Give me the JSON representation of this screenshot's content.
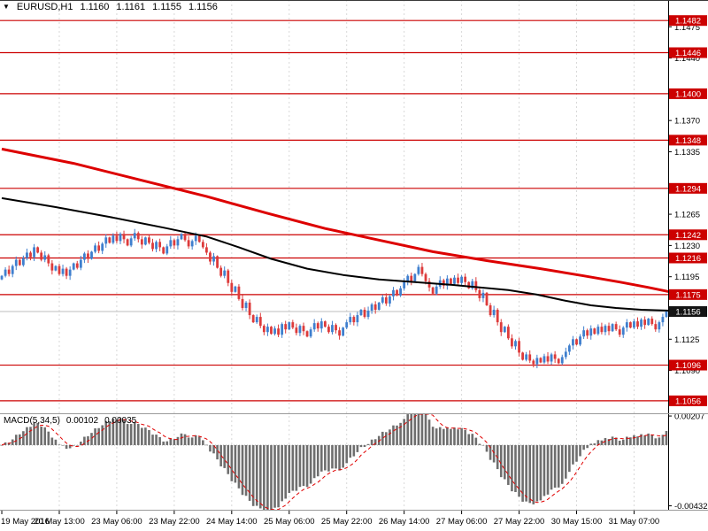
{
  "header": {
    "symbol": "EURUSD,H1",
    "open": "1.1160",
    "high": "1.1161",
    "low": "1.1155",
    "close": "1.1156"
  },
  "indicator": {
    "label": "MACD(5,34,5)",
    "value1": "0.00102",
    "value2": "0.00035"
  },
  "colors": {
    "up": "#3f7fce",
    "down": "#dd3b3b",
    "level": "#cc0000",
    "ma_slow": "#dd0000",
    "ma_fast": "#000000",
    "macd_hist": "#6e6e6e",
    "macd_signal": "#e00000",
    "grid": "#d8d8d8",
    "current_badge": "#141414",
    "separator": "#9a9a9a"
  },
  "chart_data": [
    {
      "type": "candlestick",
      "symbol": "EURUSD",
      "timeframe": "H1",
      "ohlc_display": {
        "open": "1.1160",
        "high": "1.1161",
        "low": "1.1155",
        "close": "1.1156"
      },
      "ylim": [
        1.1043,
        1.1505
      ],
      "open_first": 1.1192,
      "closes": [
        1.1196,
        1.1203,
        1.1198,
        1.1207,
        1.1214,
        1.1208,
        1.1216,
        1.1222,
        1.1217,
        1.1228,
        1.1222,
        1.1214,
        1.1219,
        1.121,
        1.1202,
        1.1207,
        1.1198,
        1.1204,
        1.1196,
        1.1203,
        1.121,
        1.1205,
        1.1214,
        1.1221,
        1.1215,
        1.1223,
        1.123,
        1.1224,
        1.1232,
        1.1239,
        1.1233,
        1.1241,
        1.1235,
        1.1243,
        1.1237,
        1.123,
        1.1238,
        1.1244,
        1.1237,
        1.1231,
        1.1239,
        1.1233,
        1.1226,
        1.1234,
        1.1228,
        1.1221,
        1.1229,
        1.1236,
        1.123,
        1.1237,
        1.1243,
        1.1236,
        1.1229,
        1.1235,
        1.1241,
        1.1234,
        1.1228,
        1.1222,
        1.1212,
        1.1218,
        1.1205,
        1.1196,
        1.1202,
        1.1188,
        1.1178,
        1.1184,
        1.117,
        1.116,
        1.1166,
        1.1152,
        1.1144,
        1.115,
        1.114,
        1.1133,
        1.1139,
        1.1131,
        1.1137,
        1.113,
        1.1142,
        1.1136,
        1.1144,
        1.1138,
        1.1132,
        1.114,
        1.1134,
        1.1128,
        1.1136,
        1.1143,
        1.1137,
        1.1145,
        1.1139,
        1.1133,
        1.1141,
        1.1135,
        1.1129,
        1.1138,
        1.1144,
        1.115,
        1.1144,
        1.1152,
        1.1158,
        1.115,
        1.1157,
        1.1164,
        1.1158,
        1.1166,
        1.1172,
        1.1165,
        1.1173,
        1.118,
        1.1174,
        1.1182,
        1.1189,
        1.1196,
        1.119,
        1.1198,
        1.1206,
        1.1198,
        1.119,
        1.1183,
        1.1176,
        1.1184,
        1.1191,
        1.1185,
        1.1193,
        1.1187,
        1.1194,
        1.1188,
        1.1195,
        1.1189,
        1.1182,
        1.119,
        1.118,
        1.1171,
        1.1177,
        1.1163,
        1.1152,
        1.1158,
        1.1144,
        1.1133,
        1.1139,
        1.1126,
        1.1117,
        1.1123,
        1.111,
        1.1102,
        1.1108,
        1.1101,
        1.1097,
        1.1104,
        1.1099,
        1.1106,
        1.11,
        1.1108,
        1.1103,
        1.1098,
        1.1105,
        1.1111,
        1.1118,
        1.1125,
        1.1119,
        1.1128,
        1.1135,
        1.1129,
        1.1137,
        1.1131,
        1.1139,
        1.1133,
        1.114,
        1.1134,
        1.1142,
        1.1136,
        1.113,
        1.1138,
        1.1144,
        1.1138,
        1.1145,
        1.1139,
        1.1147,
        1.1141,
        1.1148,
        1.1142,
        1.1136,
        1.1144,
        1.115,
        1.1156
      ],
      "horizontal_levels": [
        1.1482,
        1.1446,
        1.14,
        1.1348,
        1.1294,
        1.1242,
        1.1216,
        1.1175,
        1.1096,
        1.1056
      ],
      "axis_ticks": [
        1.1475,
        1.144,
        1.137,
        1.1335,
        1.1265,
        1.123,
        1.1195,
        1.1125,
        1.109
      ],
      "current_price": 1.1156,
      "current_price_label": "1.1156",
      "level_labels": [
        "1.1482",
        "1.1446",
        "1.1400",
        "1.1348",
        "1.1294",
        "1.1242",
        "1.1216",
        "1.1175",
        "1.1096",
        "1.1056"
      ],
      "time_labels": [
        {
          "label": "19 May 2016",
          "i": 0
        },
        {
          "label": "20 May 13:00",
          "i": 16
        },
        {
          "label": "23 May 06:00",
          "i": 32
        },
        {
          "label": "23 May 22:00",
          "i": 48
        },
        {
          "label": "24 May 14:00",
          "i": 64
        },
        {
          "label": "25 May 06:00",
          "i": 80
        },
        {
          "label": "25 May 22:00",
          "i": 96
        },
        {
          "label": "26 May 14:00",
          "i": 112
        },
        {
          "label": "27 May 06:00",
          "i": 128
        },
        {
          "label": "27 May 22:00",
          "i": 144
        },
        {
          "label": "30 May 15:00",
          "i": 160
        },
        {
          "label": "31 May 07:00",
          "i": 176
        }
      ],
      "overlays": [
        {
          "name": "ma-slow-red",
          "points": [
            [
              0,
              1.1338
            ],
            [
              20,
              1.1322
            ],
            [
              40,
              1.1302
            ],
            [
              57,
              1.1285
            ],
            [
              74,
              1.1266
            ],
            [
              90,
              1.1249
            ],
            [
              105,
              1.1236
            ],
            [
              120,
              1.1223
            ],
            [
              135,
              1.1213
            ],
            [
              150,
              1.1204
            ],
            [
              162,
              1.1196
            ],
            [
              172,
              1.1189
            ],
            [
              180,
              1.1183
            ],
            [
              186,
              1.1178
            ]
          ]
        },
        {
          "name": "ma-fast-black",
          "points": [
            [
              0,
              1.1283
            ],
            [
              15,
              1.1273
            ],
            [
              30,
              1.1262
            ],
            [
              45,
              1.125
            ],
            [
              57,
              1.124
            ],
            [
              66,
              1.1228
            ],
            [
              75,
              1.1215
            ],
            [
              85,
              1.1204
            ],
            [
              95,
              1.1197
            ],
            [
              105,
              1.1192
            ],
            [
              115,
              1.1189
            ],
            [
              125,
              1.1186
            ],
            [
              133,
              1.1183
            ],
            [
              141,
              1.118
            ],
            [
              149,
              1.1175
            ],
            [
              157,
              1.1168
            ],
            [
              164,
              1.1163
            ],
            [
              171,
              1.116
            ],
            [
              178,
              1.1158
            ],
            [
              186,
              1.1157
            ]
          ]
        }
      ]
    },
    {
      "type": "bar",
      "name": "MACD(5,34,5)",
      "params": {
        "fast": 5,
        "slow": 34,
        "signal": 5
      },
      "derived_from": "closes",
      "display_values": [
        "0.00102",
        "0.00035"
      ],
      "ylim": [
        -0.0046,
        0.0022
      ],
      "axis_labels": [
        {
          "label": "0.00207",
          "value": 0.00207
        },
        {
          "label": "-0.00432",
          "value": -0.00432
        }
      ]
    }
  ]
}
